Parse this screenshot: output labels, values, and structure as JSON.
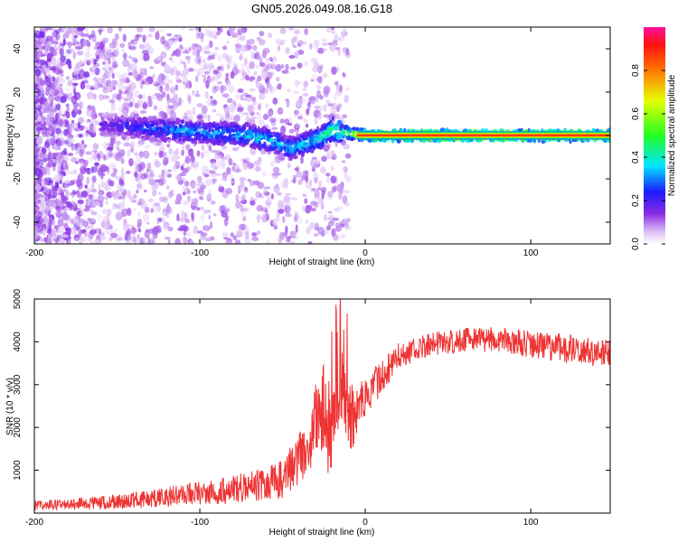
{
  "title": "GN05.2026.049.08.16.G18",
  "chart_data": [
    {
      "type": "heatmap",
      "title": "GN05.2026.049.08.16.G18",
      "xlabel": "Height of straight line (km)",
      "ylabel": "Frequency (Hz)",
      "xlim": [
        -200,
        148
      ],
      "ylim": [
        -50,
        50
      ],
      "xticks": [
        -200,
        -100,
        0,
        100
      ],
      "yticks": [
        -40,
        -20,
        0,
        20,
        40
      ],
      "xtick_labels": [
        "-200",
        "-100",
        "0",
        "100"
      ],
      "ytick_labels": [
        "-40",
        "-20",
        "0",
        "20",
        "40"
      ],
      "colorbar": {
        "label": "Normalized spectral amplitude",
        "range": [
          0,
          1
        ],
        "ticks": [
          0.0,
          0.2,
          0.4,
          0.6,
          0.8
        ],
        "tick_labels": [
          "0.0",
          "0.2",
          "0.4",
          "0.6",
          "0.8"
        ],
        "colormap": "rainbow (white-violet-blue-cyan-green-yellow-red-magenta)"
      },
      "ridge": {
        "description": "Dominant frequency track vs height",
        "points": [
          {
            "height": -155,
            "frequency": 5,
            "amplitude": 0.2
          },
          {
            "height": -130,
            "frequency": 3,
            "amplitude": 0.3
          },
          {
            "height": -110,
            "frequency": 2,
            "amplitude": 0.35
          },
          {
            "height": -90,
            "frequency": 1,
            "amplitude": 0.35
          },
          {
            "height": -70,
            "frequency": 0,
            "amplitude": 0.4
          },
          {
            "height": -55,
            "frequency": -3,
            "amplitude": 0.4
          },
          {
            "height": -45,
            "frequency": -6,
            "amplitude": 0.35
          },
          {
            "height": -35,
            "frequency": -3,
            "amplitude": 0.4
          },
          {
            "height": -27,
            "frequency": -1,
            "amplitude": 0.45
          },
          {
            "height": -20,
            "frequency": 3,
            "amplitude": 0.5
          },
          {
            "height": -10,
            "frequency": 1,
            "amplitude": 0.6
          },
          {
            "height": 0,
            "frequency": 0,
            "amplitude": 0.8
          },
          {
            "height": 20,
            "frequency": 0,
            "amplitude": 0.9
          },
          {
            "height": 148,
            "frequency": 0,
            "amplitude": 0.9
          }
        ]
      }
    },
    {
      "type": "line",
      "xlabel": "Height of straight line (km)",
      "ylabel": "SNR (10 * v/v)",
      "xlim": [
        -200,
        148
      ],
      "ylim": [
        0,
        5000
      ],
      "xticks": [
        -200,
        -100,
        0,
        100
      ],
      "yticks": [
        1000,
        2000,
        3000,
        4000,
        5000
      ],
      "xtick_labels": [
        "-200",
        "-100",
        "0",
        "100"
      ],
      "ytick_labels": [
        "1000",
        "2000",
        "3000",
        "4000",
        "5000"
      ],
      "series": [
        {
          "name": "SNR",
          "color": "#ee3333",
          "envelope_x": [
            -200,
            -180,
            -160,
            -140,
            -120,
            -100,
            -80,
            -60,
            -50,
            -42,
            -36,
            -30,
            -26,
            -22,
            -18,
            -14,
            -10,
            -6,
            -2,
            2,
            6,
            10,
            15,
            20,
            30,
            40,
            50,
            60,
            80,
            100,
            120,
            148
          ],
          "envelope_y": [
            180,
            200,
            240,
            300,
            380,
            460,
            560,
            680,
            800,
            1200,
            1500,
            2200,
            2500,
            2000,
            2600,
            2800,
            2200,
            2300,
            2500,
            2600,
            3000,
            3200,
            3400,
            3700,
            3800,
            3950,
            4000,
            4050,
            4050,
            3950,
            3850,
            3700
          ],
          "noise_amplitude": [
            120,
            120,
            160,
            200,
            240,
            280,
            320,
            380,
            450,
            600,
            700,
            900,
            1100,
            1200,
            1200,
            1000,
            800,
            700,
            600,
            500,
            450,
            400,
            350,
            300,
            280,
            280,
            280,
            280,
            300,
            320,
            340,
            360
          ]
        }
      ]
    }
  ]
}
